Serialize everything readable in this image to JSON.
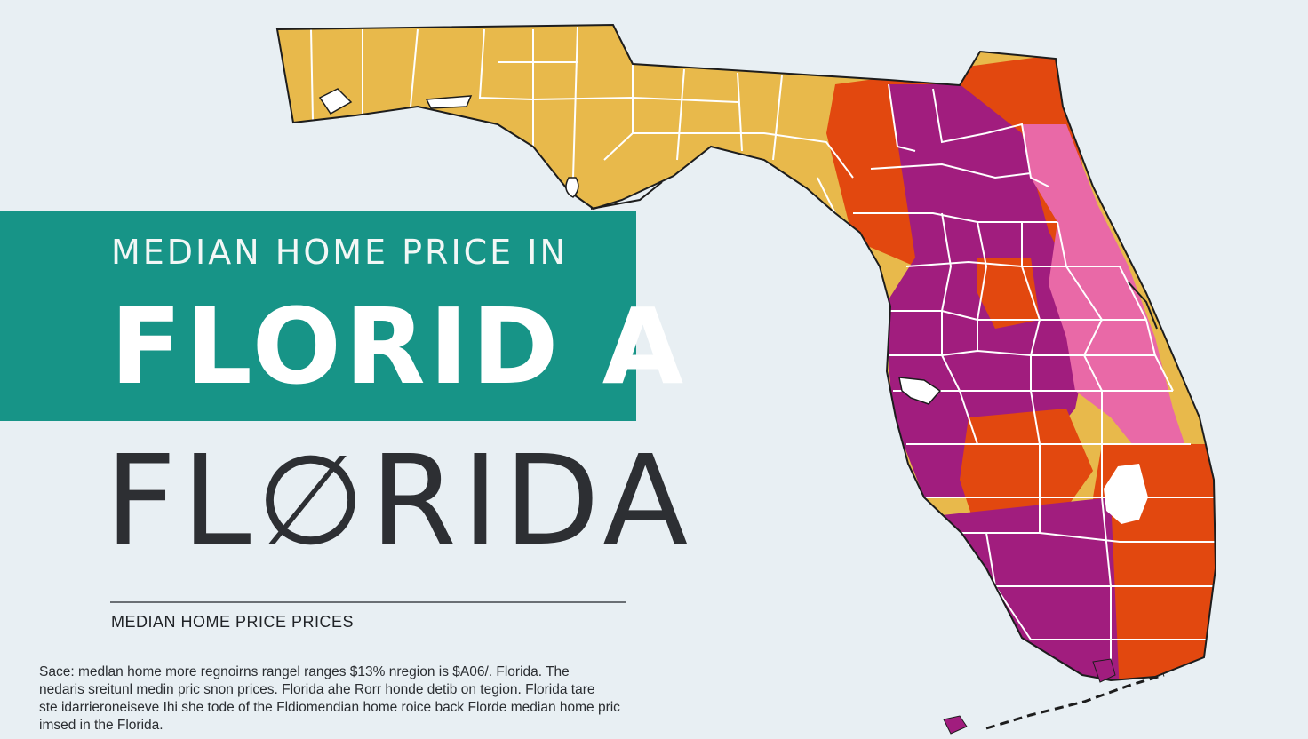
{
  "banner": {
    "kicker": "MEDIAN HOME PRICE IN",
    "title": "FLORID A"
  },
  "main_title": "FL∅RIDA",
  "subtitle": "MEDIAN HOME PRICE PRICES",
  "source_lines": [
    "Sace:  medlan home more regnoirns rangel ranges $13% nregion is $A06/. Florida. The",
    "nedaris sreitunl medin pric snon prices. Florida ahe Rorr honde detib on tegion. Florida tare",
    "ste idarrieroneiseve Ihi she tode of the Fldiomendian home roice back Florde median home pric",
    "imsed in the Florida."
  ],
  "colors": {
    "background": "#e8eff3",
    "banner": "#179487",
    "tier_low": "#e8b94b",
    "tier_mid": "#e2480f",
    "tier_high": "#a11d7e",
    "tier_top": "#e969a7",
    "county_border": "#ffffff",
    "coast_outline": "#1d1d1d"
  }
}
